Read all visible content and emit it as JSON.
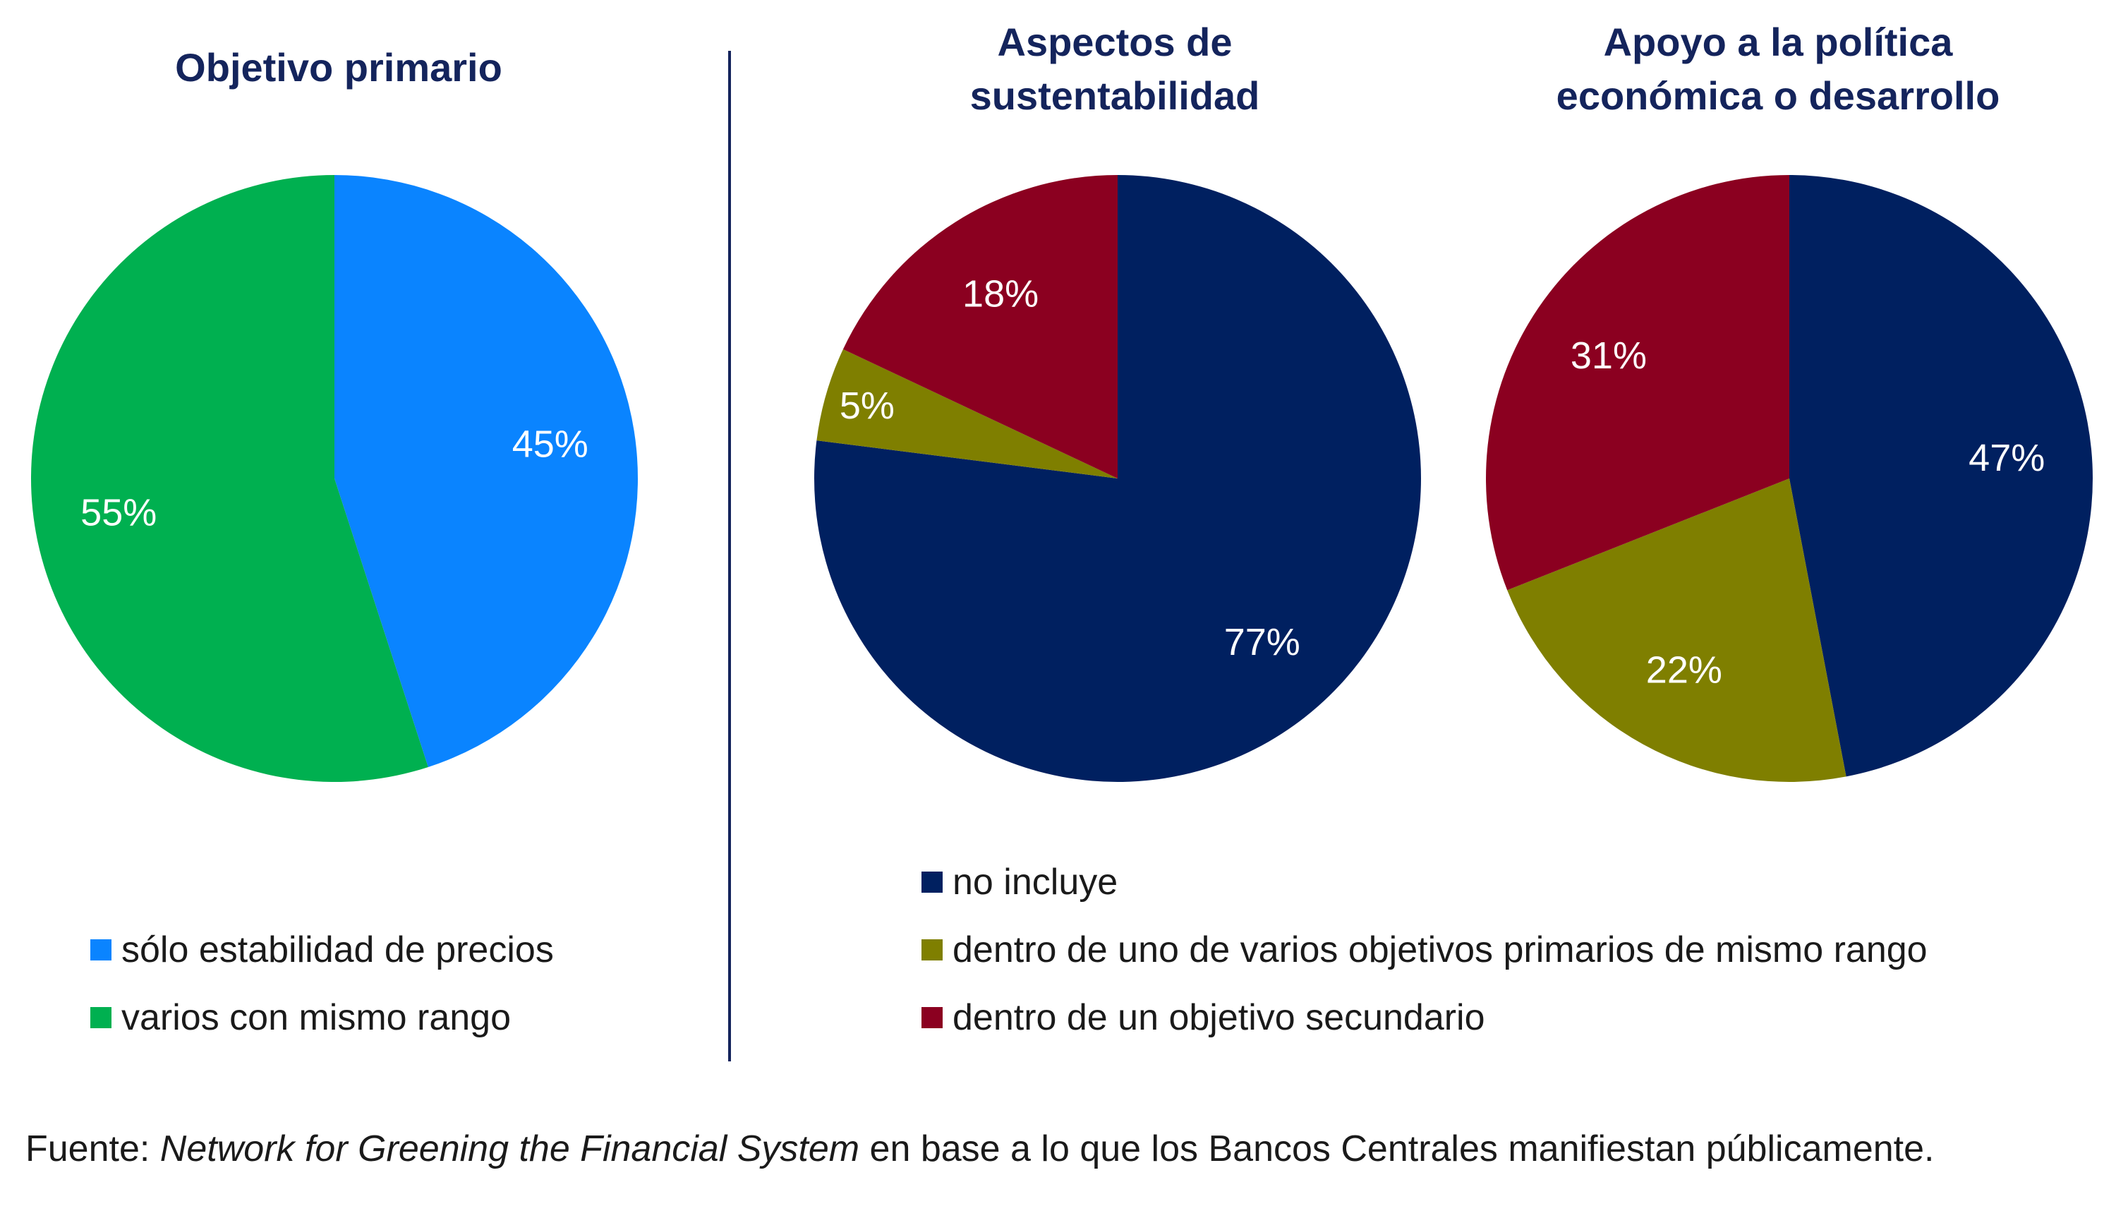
{
  "colors": {
    "price_stability": "#0a84ff",
    "several_same_rank": "#00b050",
    "not_included": "#002060",
    "within_primary": "#7f7f00",
    "within_secondary": "#8b0020",
    "title": "#14245c",
    "divider": "#14245c"
  },
  "chart_data": [
    {
      "type": "pie",
      "title": "Objetivo primario",
      "categories": [
        "sólo estabilidad de precios",
        "varios con mismo rango"
      ],
      "values": [
        45,
        55
      ],
      "labels": [
        "45%",
        "55%"
      ],
      "colors": [
        "#0a84ff",
        "#00b050"
      ],
      "start_angle_deg": 0
    },
    {
      "type": "pie",
      "title": "Aspectos de\nsustentabilidad",
      "categories": [
        "no incluye",
        "dentro de uno de varios objetivos primarios de mismo rango",
        "dentro de un objetivo secundario"
      ],
      "values": [
        77,
        5,
        18
      ],
      "labels": [
        "77%",
        "5%",
        "18%"
      ],
      "colors": [
        "#002060",
        "#7f7f00",
        "#8b0020"
      ],
      "start_angle_deg": 0
    },
    {
      "type": "pie",
      "title": "Apoyo a la política\neconómica o desarrollo",
      "categories": [
        "no incluye",
        "dentro de uno de varios objetivos primarios de mismo rango",
        "dentro de un objetivo secundario"
      ],
      "values": [
        47,
        22,
        31
      ],
      "labels": [
        "47%",
        "22%",
        "31%"
      ],
      "colors": [
        "#002060",
        "#7f7f00",
        "#8b0020"
      ],
      "start_angle_deg": 0
    }
  ],
  "legend_left": [
    {
      "label": "sólo estabilidad de precios",
      "color": "#0a84ff"
    },
    {
      "label": "varios con mismo rango",
      "color": "#00b050"
    }
  ],
  "legend_right": [
    {
      "label": "no incluye",
      "color": "#002060"
    },
    {
      "label": "dentro de uno de varios objetivos primarios de mismo rango",
      "color": "#7f7f00"
    },
    {
      "label": "dentro de un objetivo secundario",
      "color": "#8b0020"
    }
  ],
  "source": {
    "prefix": "Fuente: ",
    "italic": "Network for Greening the Financial System",
    "suffix": " en base a lo que los Bancos Centrales manifiestan públicamente."
  }
}
